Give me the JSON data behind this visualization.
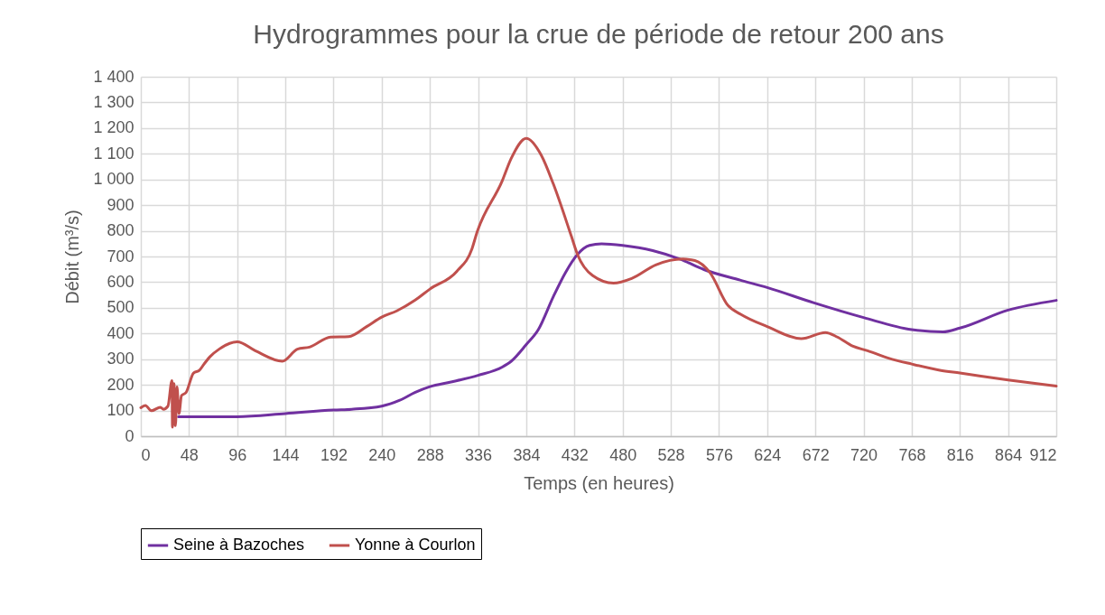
{
  "chart_data": {
    "type": "line",
    "title": "Hydrogrammes pour la crue de période de retour 200 ans",
    "xlabel": "Temps (en heures)",
    "ylabel": "Débit (m³/s)",
    "xlim": [
      0,
      912
    ],
    "xticks": [
      0,
      48,
      96,
      144,
      192,
      240,
      288,
      336,
      384,
      432,
      480,
      528,
      576,
      624,
      672,
      720,
      768,
      816,
      864,
      912
    ],
    "ylim": [
      0,
      1400
    ],
    "yticks": [
      0,
      100,
      200,
      300,
      400,
      500,
      600,
      700,
      800,
      900,
      {
        "value": 1000,
        "label": "1 000"
      },
      {
        "value": 1100,
        "label": "1 100"
      },
      {
        "value": 1200,
        "label": "1 200"
      },
      {
        "value": 1300,
        "label": "1 300"
      },
      {
        "value": 1400,
        "label": "1 400"
      }
    ],
    "grid": true,
    "legend": "bottom",
    "line_style": "solid",
    "series": [
      {
        "name": "Seine à Bazoches",
        "color": "#7030a0",
        "x": [
          37.5,
          96,
          144,
          192,
          210,
          240,
          258,
          273,
          288,
          309,
          336,
          360,
          369,
          384,
          396,
          411,
          423,
          435,
          447,
          459,
          480,
          510,
          537,
          561,
          597,
          624,
          670,
          720,
          768,
          799,
          816,
          864,
          912
        ],
        "values": [
          76,
          76,
          88,
          102,
          105,
          117,
          140,
          170,
          193,
          211,
          237,
          269,
          292,
          357,
          415,
          544,
          637,
          708,
          743,
          749,
          743,
          723,
          690,
          649,
          608,
          579,
          520,
          462,
          415,
          406,
          421,
          491,
          529
        ]
      },
      {
        "name": "Yonne à Courlon",
        "color": "#c0504d",
        "x": [
          0,
          4.5,
          10.5,
          19.5,
          22.5,
          27,
          31,
          31.5,
          33,
          34.5,
          36,
          38,
          40.5,
          45,
          52.5,
          58.5,
          63,
          69,
          78,
          96,
          114,
          141,
          156,
          168,
          189,
          207,
          225,
          240,
          255,
          273,
          288,
          315,
          330,
          334.5,
          360,
          369,
          384,
          399,
          411,
          429,
          435,
          450,
          471,
          489,
          513,
          540,
          552,
          567,
          585,
          598,
          624,
          658,
          682,
          694,
          709,
          724,
          745,
          768,
          796,
          816,
          864,
          912
        ],
        "values": [
          111,
          120,
          99,
          113,
          105,
          117,
          216,
          35,
          205,
          41,
          193,
          88,
          158,
          170,
          246,
          257,
          281,
          310,
          339,
          368,
          333,
          292,
          339,
          347,
          386,
          388,
          427,
          464,
          488,
          529,
          573,
          643,
          731,
          789,
          994,
          1082,
          1160,
          1094,
          982,
          778,
          708,
          626,
          596,
          614,
          667,
          690,
          684,
          637,
          509,
          474,
          427,
          380,
          404,
          386,
          351,
          333,
          304,
          281,
          257,
          246,
          219,
          195
        ]
      }
    ]
  }
}
